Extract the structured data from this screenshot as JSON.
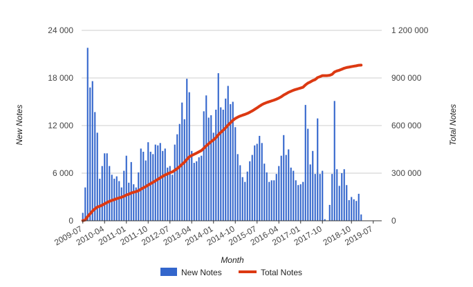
{
  "chart_data": {
    "type": "bar+line",
    "xlabel": "Month",
    "ylabel_left": "New Notes",
    "ylabel_right": "Total Notes",
    "y_left_ticks": [
      "0",
      "6 000",
      "12 000",
      "18 000",
      "24 000"
    ],
    "y_right_ticks": [
      "0",
      "300 000",
      "600 000",
      "900 000",
      "1 200 000"
    ],
    "y_left_range": [
      0,
      24000
    ],
    "y_right_range": [
      0,
      1200000
    ],
    "x_tick_labels": [
      "2009-07",
      "2010-04",
      "2011-01",
      "2011-10",
      "2012-07",
      "2013-04",
      "2014-01",
      "2014-10",
      "2015-07",
      "2016-04",
      "2017-01",
      "2017-10",
      "2018-10",
      "2019-07"
    ],
    "x_start": "2009-07",
    "x_end": "2019-10",
    "legend_position": "bottom",
    "grid": true,
    "colors": {
      "bars": "#3366cc",
      "line": "#dc3912",
      "grid": "#cccccc"
    },
    "series": [
      {
        "name": "New Notes",
        "kind": "bar",
        "values": [
          1000,
          4200,
          21800,
          16800,
          17600,
          13700,
          11100,
          5300,
          6900,
          8500,
          8500,
          6900,
          5800,
          5300,
          5600,
          5000,
          4200,
          6300,
          8200,
          4800,
          7400,
          4600,
          4200,
          6100,
          9100,
          8700,
          7600,
          9900,
          8700,
          8400,
          9600,
          9500,
          9800,
          8800,
          9100,
          6700,
          6900,
          5800,
          9600,
          10900,
          12200,
          14900,
          12800,
          17900,
          16200,
          8800,
          7300,
          7500,
          8000,
          8200,
          13800,
          15800,
          13000,
          13300,
          11100,
          14000,
          18600,
          14300,
          14000,
          15400,
          17000,
          14700,
          15000,
          11800,
          8400,
          7000,
          5500,
          4900,
          6200,
          7500,
          8300,
          9500,
          9700,
          10700,
          9800,
          7200,
          6100,
          4900,
          5100,
          5100,
          5900,
          6900,
          8200,
          10800,
          8300,
          9000,
          6700,
          6300,
          5100,
          4500,
          4600,
          4900,
          14600,
          11600,
          7100,
          8800,
          5900,
          12900,
          5900,
          6300,
          200,
          0,
          2000,
          5900,
          15100,
          6500,
          4400,
          6000,
          6500,
          4500,
          2600,
          3000,
          2700,
          2500,
          3400,
          800
        ]
      },
      {
        "name": "Total Notes",
        "kind": "line",
        "values": [
          1000,
          5200,
          27000,
          43800,
          61400,
          75100,
          86200,
          91500,
          98400,
          106900,
          115400,
          122300,
          128100,
          133400,
          139000,
          144000,
          148200,
          154500,
          162700,
          167500,
          174900,
          179500,
          183700,
          189800,
          198900,
          207600,
          215200,
          225100,
          233800,
          242200,
          251800,
          261300,
          271100,
          279900,
          289000,
          295700,
          302600,
          308400,
          318000,
          328900,
          341100,
          356000,
          368800,
          386700,
          402900,
          411700,
          419000,
          426500,
          434500,
          442700,
          456500,
          472300,
          485300,
          498600,
          509700,
          523700,
          542300,
          556600,
          570600,
          586000,
          603000,
          617700,
          632700,
          644500,
          652900,
          659900,
          665400,
          670300,
          676500,
          684000,
          692300,
          701800,
          711500,
          722200,
          732000,
          739200,
          745300,
          750200,
          755300,
          760400,
          766300,
          773200,
          781400,
          792200,
          800500,
          809500,
          816200,
          822500,
          827600,
          832100,
          836700,
          841600,
          856200,
          867800,
          874900,
          883700,
          889600,
          902500,
          908400,
          914700,
          914900,
          914900,
          916900,
          922800,
          937900,
          944400,
          948800,
          954800,
          961300,
          965800,
          968400,
          971400,
          974100,
          976600,
          980000,
          980800
        ]
      }
    ]
  }
}
